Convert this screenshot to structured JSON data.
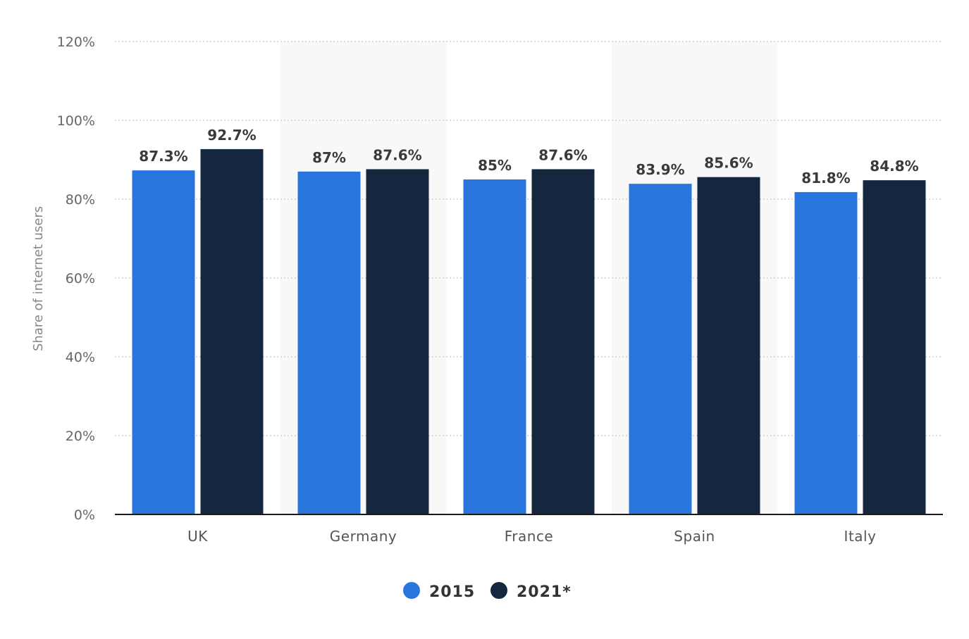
{
  "chart_data": {
    "type": "bar",
    "categories": [
      "UK",
      "Germany",
      "France",
      "Spain",
      "Italy"
    ],
    "series": [
      {
        "name": "2015",
        "color": "#2876dd",
        "values": [
          87.3,
          87,
          85,
          83.9,
          81.8
        ],
        "labels": [
          "87.3%",
          "87%",
          "85%",
          "83.9%",
          "81.8%"
        ]
      },
      {
        "name": "2021*",
        "color": "#14273e",
        "values": [
          92.7,
          87.6,
          87.6,
          85.6,
          84.8
        ],
        "labels": [
          "92.7%",
          "87.6%",
          "87.6%",
          "85.6%",
          "84.8%"
        ]
      }
    ],
    "ylabel": "Share of internet users",
    "xlabel": "",
    "ylim": [
      0,
      120
    ],
    "yticks": [
      0,
      20,
      40,
      60,
      80,
      100,
      120
    ],
    "ytick_labels": [
      "0%",
      "20%",
      "40%",
      "60%",
      "80%",
      "100%",
      "120%"
    ],
    "grid": true,
    "legend_position": "bottom-center"
  }
}
